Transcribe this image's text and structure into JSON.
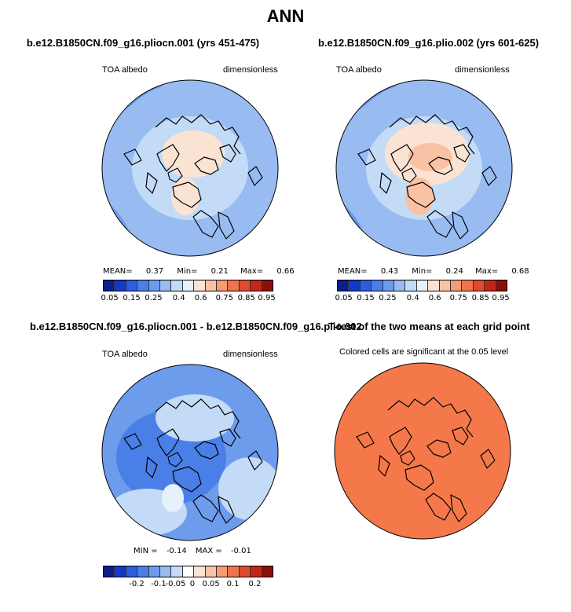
{
  "figure": {
    "title": "ANN"
  },
  "panels": {
    "p1": {
      "title": "b.e12.B1850CN.f09_g16.pliocn.001 (yrs 451-475)",
      "variable": "TOA albedo",
      "units": "dimensionless",
      "stats": {
        "mean_label": "MEAN=",
        "mean": "0.37",
        "min_label": "Min=",
        "min": "0.21",
        "max_label": "Max=",
        "max": "0.66"
      }
    },
    "p2": {
      "title": "b.e12.B1850CN.f09_g16.plio.002 (yrs 601-625)",
      "variable": "TOA albedo",
      "units": "dimensionless",
      "stats": {
        "mean_label": "MEAN=",
        "mean": "0.43",
        "min_label": "Min=",
        "min": "0.24",
        "max_label": "Max=",
        "max": "0.68"
      }
    },
    "p3": {
      "title": "b.e12.B1850CN.f09_g16.pliocn.001 - b.e12.B1850CN.f09_g16.plio.002",
      "variable": "TOA albedo",
      "units": "dimensionless",
      "stats": {
        "min_label": "MIN =",
        "min": "-0.14",
        "max_label": "MAX =",
        "max": "-0.01"
      }
    },
    "p4": {
      "title": "T-test of the two means at each grid point",
      "subtitle": "Colored cells are significant at the 0.05 level"
    }
  },
  "colorbar_abs": {
    "colors": [
      "#0a1e8c",
      "#1638c8",
      "#2b5ee0",
      "#4a7fe8",
      "#6e9ced",
      "#98bcf2",
      "#c3dbf7",
      "#e6f1fb",
      "#fbe3d4",
      "#f9c2a4",
      "#f59b76",
      "#ee7450",
      "#e04a2e",
      "#c22614",
      "#8c0e08"
    ],
    "labels": [
      "0.05",
      "0.15",
      "0.25",
      "0.4",
      "0.6",
      "0.75",
      "0.85",
      "0.95"
    ]
  },
  "colorbar_diff": {
    "colors": [
      "#0a1e8c",
      "#1638c8",
      "#2b5ee0",
      "#4a7fe8",
      "#6e9ced",
      "#98bcf2",
      "#c3dbf7",
      "#ffffff",
      "#fbe3d4",
      "#f9c2a4",
      "#f59b76",
      "#ee7450",
      "#e04a2e",
      "#c22614",
      "#8c0e08"
    ],
    "labels": [
      "-0.2",
      "-0.1",
      "-0.05",
      "0",
      "0.05",
      "0.1",
      "0.2"
    ]
  },
  "map_colors": {
    "ocean_mid": "#98bcf2",
    "ocean_dark": "#6e9ced",
    "land_pale": "#c3dbf7",
    "ice_pale": "#fbe3d4",
    "ice_warm": "#f9c2a4",
    "diff_deep": "#4a7fe8",
    "diff_mid": "#6e9ced",
    "diff_light": "#c3dbf7",
    "ttest": "#f5784a"
  }
}
